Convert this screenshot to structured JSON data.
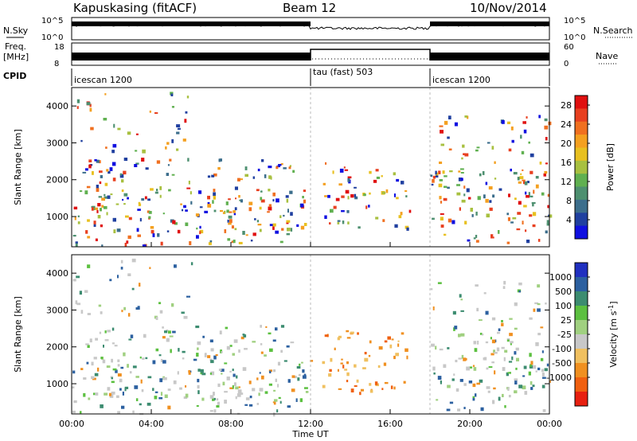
{
  "header": {
    "station": "Kapuskasing (fitACF)",
    "beam": "Beam 12",
    "date": "10/Nov/2014"
  },
  "status_panels": {
    "nsky_label": "N.Sky",
    "nsky_ticks": [
      "10^5",
      "10^0"
    ],
    "nsearch_label": "N.Search",
    "nsearch_ticks": [
      "10^5",
      "10^0"
    ],
    "freq_label_top": "Freq.",
    "freq_label_unit": "[MHz]",
    "freq_ticks": [
      "18",
      "8"
    ],
    "nave_label": "Nave",
    "nave_ticks": [
      "60",
      "0"
    ],
    "cpid_label": "CPID",
    "cpid_modes": [
      {
        "name": "icescan 1200",
        "start_hour": 0,
        "end_hour": 12
      },
      {
        "name": "tau (fast) 503",
        "start_hour": 12,
        "end_hour": 18
      },
      {
        "name": "icescan 1200",
        "start_hour": 18,
        "end_hour": 24
      }
    ]
  },
  "chart_data": [
    {
      "type": "heatmap",
      "title": "",
      "xlabel": "Time UT",
      "ylabel": "Slant Range [km]",
      "x_ticks": [
        "00:00",
        "04:00",
        "08:00",
        "12:00",
        "16:00",
        "20:00",
        "00:00"
      ],
      "x_range_hours": [
        0,
        24
      ],
      "y_ticks": [
        "1000",
        "2000",
        "3000",
        "4000"
      ],
      "ylim": [
        180,
        4500
      ],
      "colorbar": {
        "label": "Power [dB]",
        "ticks": [
          "4",
          "8",
          "12",
          "16",
          "20",
          "24",
          "28"
        ],
        "range": [
          0,
          30
        ],
        "colors": [
          "#1010e0",
          "#2040a0",
          "#3c6e8c",
          "#4e9070",
          "#60b050",
          "#a8c040",
          "#e8c020",
          "#f4a020",
          "#f07020",
          "#e84020",
          "#e01010"
        ]
      },
      "echo_regions": [
        {
          "t": [
            0,
            12
          ],
          "r": [
            600,
            1800
          ],
          "level": 0.6
        },
        {
          "t": [
            0.5,
            11.5
          ],
          "r": [
            1800,
            2600
          ],
          "level": 0.4
        },
        {
          "t": [
            0,
            11
          ],
          "r": [
            200,
            600
          ],
          "level": 0.35
        },
        {
          "t": [
            0,
            6
          ],
          "r": [
            2800,
            4400
          ],
          "level": 0.2
        },
        {
          "t": [
            12.5,
            17
          ],
          "r": [
            700,
            2500
          ],
          "level": 0.4
        },
        {
          "t": [
            18,
            24
          ],
          "r": [
            900,
            2300
          ],
          "level": 0.6
        },
        {
          "t": [
            18,
            24
          ],
          "r": [
            300,
            900
          ],
          "level": 0.3
        },
        {
          "t": [
            18,
            24
          ],
          "r": [
            2300,
            3800
          ],
          "level": 0.25
        }
      ]
    },
    {
      "type": "heatmap",
      "title": "",
      "xlabel": "Time UT",
      "ylabel": "Slant Range [km]",
      "x_ticks": [
        "00:00",
        "04:00",
        "08:00",
        "12:00",
        "16:00",
        "20:00",
        "00:00"
      ],
      "x_range_hours": [
        0,
        24
      ],
      "y_ticks": [
        "1000",
        "2000",
        "3000",
        "4000"
      ],
      "ylim": [
        180,
        4500
      ],
      "colorbar": {
        "label": "Velocity [m s^-1]",
        "ticks": [
          "1000",
          "500",
          "100",
          "25",
          "-25",
          "-100",
          "-500",
          "-1000"
        ],
        "range": [
          -1200,
          1200
        ],
        "colors": [
          "#2030c0",
          "#2c60a0",
          "#3c8c70",
          "#5cc040",
          "#a0d080",
          "#c8c8c8",
          "#f0c060",
          "#f09020",
          "#f06010",
          "#e82010"
        ]
      },
      "echo_regions": [
        {
          "t": [
            0,
            12
          ],
          "r": [
            600,
            1800
          ],
          "level": 0.6
        },
        {
          "t": [
            0.5,
            11.5
          ],
          "r": [
            1800,
            2600
          ],
          "level": 0.4
        },
        {
          "t": [
            0,
            11
          ],
          "r": [
            200,
            600
          ],
          "level": 0.35
        },
        {
          "t": [
            0,
            6
          ],
          "r": [
            2800,
            4400
          ],
          "level": 0.2
        },
        {
          "t": [
            12.5,
            17
          ],
          "r": [
            700,
            2500
          ],
          "level": 0.4
        },
        {
          "t": [
            18,
            24
          ],
          "r": [
            900,
            2300
          ],
          "level": 0.6
        },
        {
          "t": [
            18,
            24
          ],
          "r": [
            300,
            900
          ],
          "level": 0.3
        },
        {
          "t": [
            18,
            24
          ],
          "r": [
            2300,
            3800
          ],
          "level": 0.25
        }
      ]
    }
  ]
}
